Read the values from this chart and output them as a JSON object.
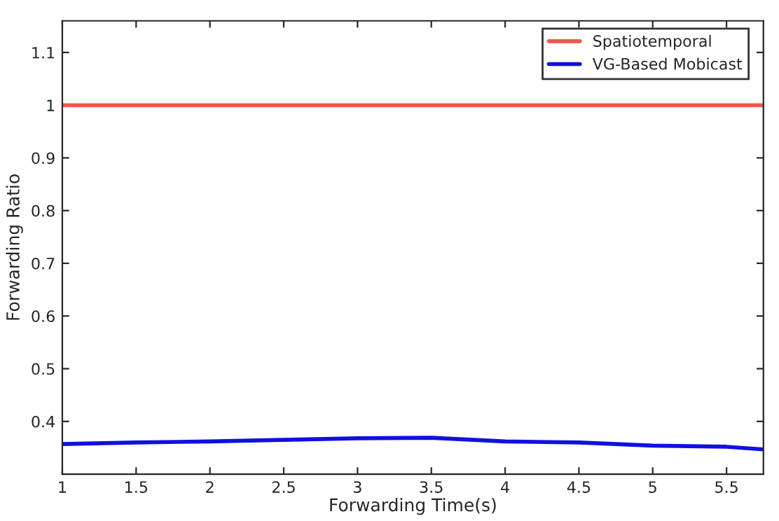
{
  "chart_data": {
    "type": "line",
    "xlabel": "Forwarding Time(s)",
    "ylabel": "Forwarding Ratio",
    "x": [
      1,
      1.5,
      2,
      2.5,
      3,
      3.5,
      4,
      4.5,
      5,
      5.5,
      5.75
    ],
    "series": [
      {
        "name": "Spatiotemporal",
        "color": "#f0584c",
        "values": [
          1,
          1,
          1,
          1,
          1,
          1,
          1,
          1,
          1,
          1,
          1
        ]
      },
      {
        "name": "VG-Based Mobicast",
        "color": "#1010e0",
        "values": [
          0.357,
          0.36,
          0.362,
          0.365,
          0.368,
          0.369,
          0.362,
          0.36,
          0.354,
          0.352,
          0.347
        ]
      }
    ],
    "xlim": [
      1,
      5.75
    ],
    "ylim": [
      0.3,
      1.16
    ],
    "xticks": [
      1,
      1.5,
      2,
      2.5,
      3,
      3.5,
      4,
      4.5,
      5,
      5.5
    ],
    "yticks": [
      0.4,
      0.5,
      0.6,
      0.7,
      0.8,
      0.9,
      1,
      1.1
    ],
    "legend": "top right",
    "grid": false
  }
}
